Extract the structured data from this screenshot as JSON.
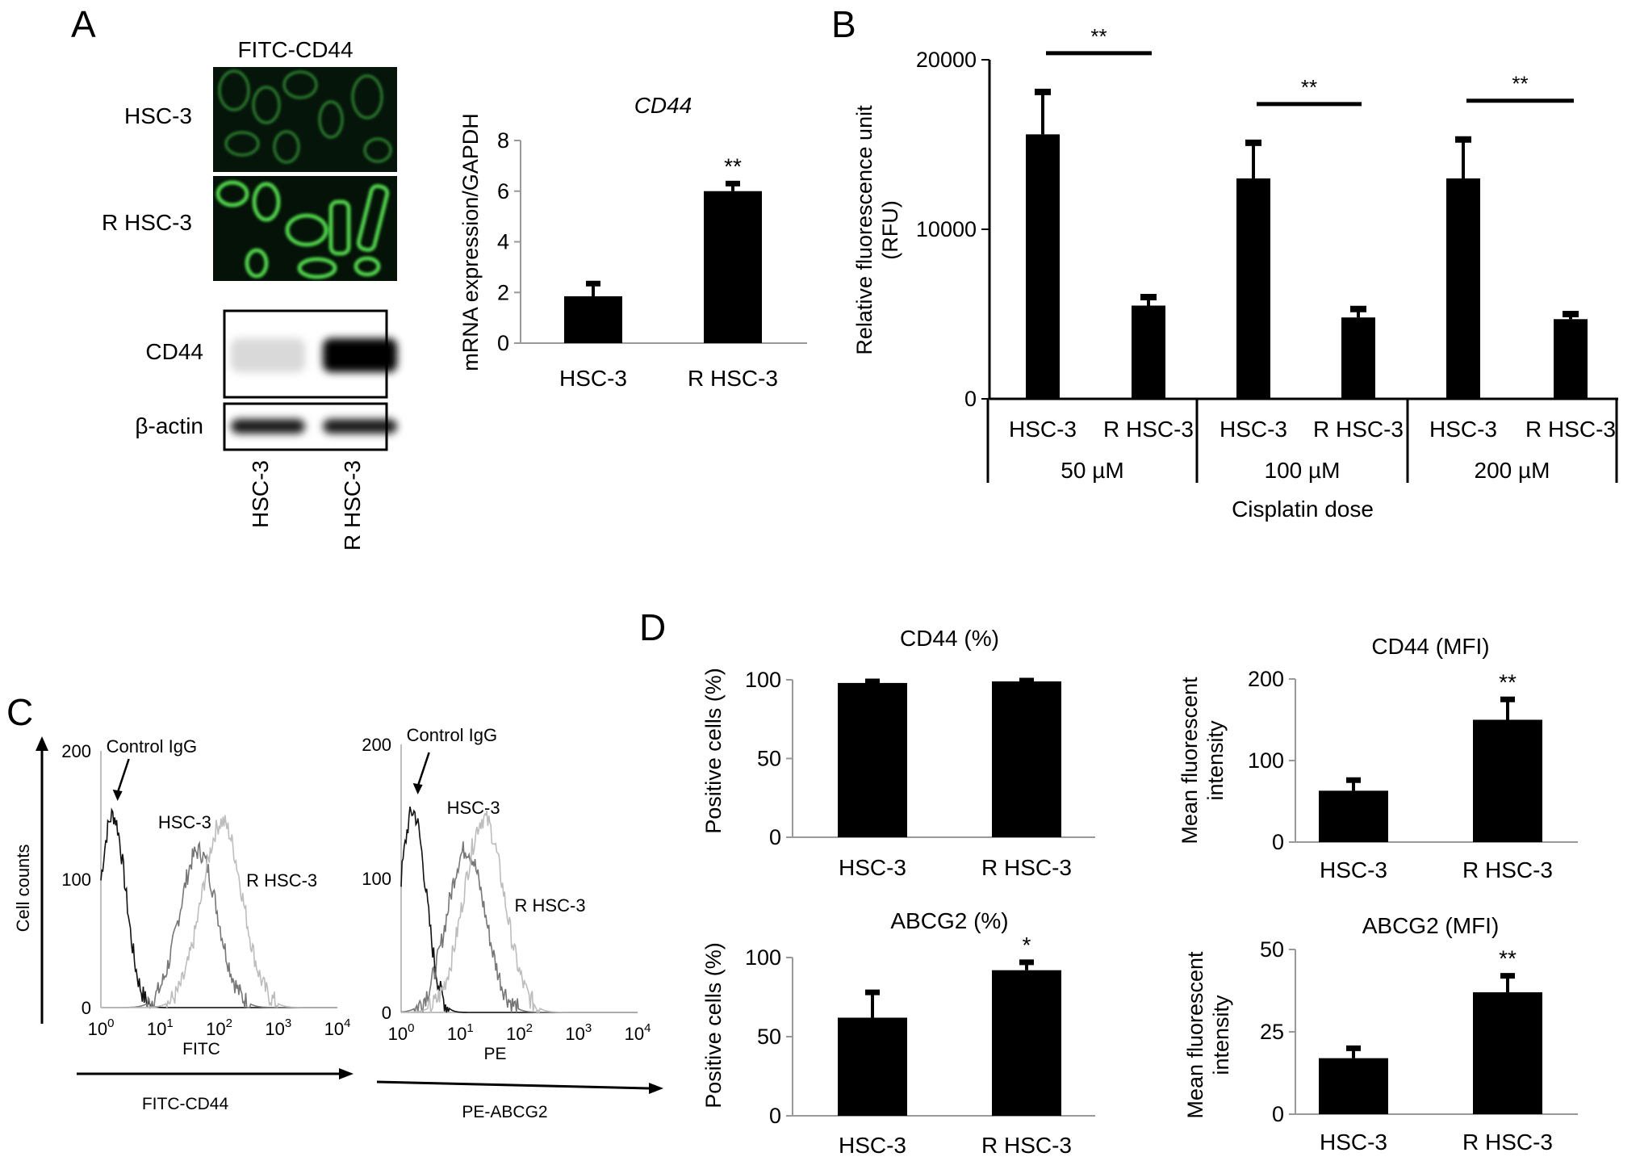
{
  "panels": {
    "A": {
      "letter": "A",
      "image_title": "FITC-CD44",
      "image_rows": [
        "HSC-3",
        "R HSC-3"
      ],
      "blot_rows": [
        "CD44",
        "β-actin"
      ],
      "blot_lanes": [
        "HSC-3",
        "R HSC-3"
      ],
      "blot_intensity": {
        "CD44": [
          0.15,
          1.0
        ],
        "β-actin": [
          0.9,
          0.9
        ]
      }
    },
    "B": {
      "letter": "B"
    },
    "C": {
      "letter": "C",
      "ylabel": "Cell counts",
      "annotations": [
        "Control IgG",
        "HSC-3",
        "R HSC-3"
      ],
      "plots": [
        {
          "xlabel": "FITC",
          "arrow_label": "FITC-CD44",
          "peaks_log10": [
            0.2,
            1.65,
            2.05
          ]
        },
        {
          "xlabel": "PE",
          "arrow_label": "PE-ABCG2",
          "peaks_log10": [
            0.2,
            1.1,
            1.4
          ]
        }
      ]
    },
    "D": {
      "letter": "D"
    }
  },
  "chart_data": [
    {
      "id": "A-mrna",
      "type": "bar",
      "title": "CD44",
      "ylabel": "mRNA expression/GAPDH",
      "categories": [
        "HSC-3",
        "R HSC-3"
      ],
      "values": [
        1.85,
        6.0
      ],
      "errors": [
        0.5,
        0.3
      ],
      "ylim": [
        0,
        8
      ],
      "yticks": [
        "0",
        "2",
        "4",
        "6",
        "8"
      ],
      "significance": [
        "",
        "**"
      ]
    },
    {
      "id": "B-rfu",
      "type": "bar",
      "ylabel": "Relative fluorescence unit (RFU)",
      "xlabel": "Cisplatin dose",
      "groups": [
        "50 µM",
        "100 µM",
        "200 µM"
      ],
      "categories": [
        "HSC-3",
        "R HSC-3"
      ],
      "values": [
        [
          15600,
          5500
        ],
        [
          13000,
          4800
        ],
        [
          13000,
          4700
        ]
      ],
      "errors": [
        [
          2500,
          500
        ],
        [
          2100,
          500
        ],
        [
          2300,
          300
        ]
      ],
      "ylim": [
        0,
        20000
      ],
      "yticks": [
        "0",
        "10000",
        "20000"
      ],
      "significance": [
        "**",
        "**",
        "**"
      ]
    },
    {
      "id": "D-cd44-pct",
      "type": "bar",
      "title": "CD44 (%)",
      "ylabel": "Positive cells (%)",
      "categories": [
        "HSC-3",
        "R HSC-3"
      ],
      "values": [
        98,
        99
      ],
      "errors": [
        1,
        0.5
      ],
      "ylim": [
        0,
        100
      ],
      "yticks": [
        "0",
        "50",
        "100"
      ],
      "significance": [
        "",
        ""
      ]
    },
    {
      "id": "D-cd44-mfi",
      "type": "bar",
      "title": "CD44 (MFI)",
      "ylabel": "Mean fluorescent intensity",
      "categories": [
        "HSC-3",
        "R HSC-3"
      ],
      "values": [
        63,
        150
      ],
      "errors": [
        13,
        25
      ],
      "ylim": [
        0,
        200
      ],
      "yticks": [
        "0",
        "100",
        "200"
      ],
      "significance": [
        "",
        "**"
      ]
    },
    {
      "id": "D-abcg2-pct",
      "type": "bar",
      "title": "ABCG2 (%)",
      "ylabel": "Positive cells (%)",
      "categories": [
        "HSC-3",
        "R HSC-3"
      ],
      "values": [
        62,
        92
      ],
      "errors": [
        16,
        5
      ],
      "ylim": [
        0,
        100
      ],
      "yticks": [
        "0",
        "50",
        "100"
      ],
      "significance": [
        "",
        "*"
      ]
    },
    {
      "id": "D-abcg2-mfi",
      "type": "bar",
      "title": "ABCG2 (MFI)",
      "ylabel": "Mean fluorescent intensity",
      "categories": [
        "HSC-3",
        "R HSC-3"
      ],
      "values": [
        17,
        37
      ],
      "errors": [
        3,
        5
      ],
      "ylim": [
        0,
        50
      ],
      "yticks": [
        "0",
        "25",
        "50"
      ],
      "significance": [
        "",
        "**"
      ]
    },
    {
      "id": "C-histogram",
      "type": "line",
      "x_scale": "log",
      "xticks": [
        "10^0",
        "10^1",
        "10^2",
        "10^3",
        "10^4"
      ],
      "yticks": [
        "0",
        "100",
        "200"
      ],
      "ylim": [
        0,
        200
      ],
      "series": [
        {
          "name": "Control IgG",
          "color": "#111111"
        },
        {
          "name": "HSC-3",
          "color": "#777777"
        },
        {
          "name": "R HSC-3",
          "color": "#bdbdbd"
        }
      ]
    }
  ]
}
